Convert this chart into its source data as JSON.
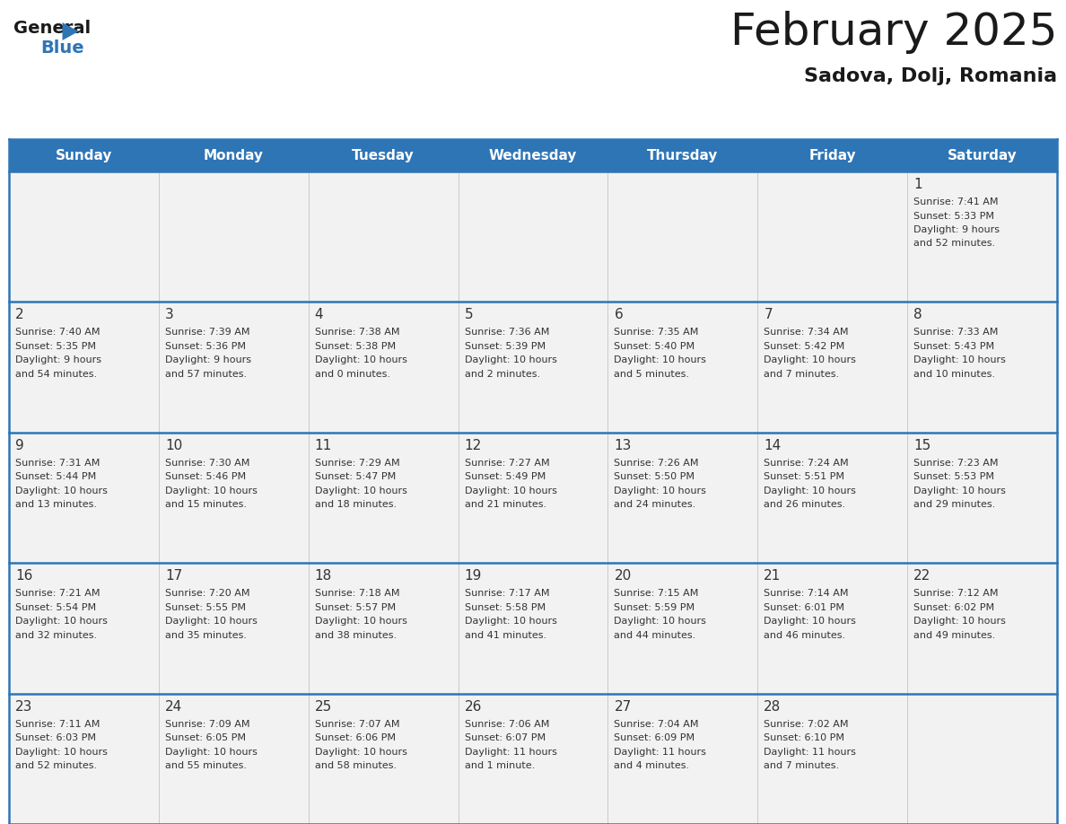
{
  "title": "February 2025",
  "subtitle": "Sadova, Dolj, Romania",
  "header_bg": "#2E75B6",
  "header_text": "#FFFFFF",
  "cell_bg": "#F2F2F2",
  "cell_bg_white": "#FFFFFF",
  "day_names": [
    "Sunday",
    "Monday",
    "Tuesday",
    "Wednesday",
    "Thursday",
    "Friday",
    "Saturday"
  ],
  "weeks": [
    [
      {
        "day": null,
        "sunrise": null,
        "sunset": null,
        "daylight": null
      },
      {
        "day": null,
        "sunrise": null,
        "sunset": null,
        "daylight": null
      },
      {
        "day": null,
        "sunrise": null,
        "sunset": null,
        "daylight": null
      },
      {
        "day": null,
        "sunrise": null,
        "sunset": null,
        "daylight": null
      },
      {
        "day": null,
        "sunrise": null,
        "sunset": null,
        "daylight": null
      },
      {
        "day": null,
        "sunrise": null,
        "sunset": null,
        "daylight": null
      },
      {
        "day": 1,
        "sunrise": "7:41 AM",
        "sunset": "5:33 PM",
        "daylight": "9 hours\nand 52 minutes."
      }
    ],
    [
      {
        "day": 2,
        "sunrise": "7:40 AM",
        "sunset": "5:35 PM",
        "daylight": "9 hours\nand 54 minutes."
      },
      {
        "day": 3,
        "sunrise": "7:39 AM",
        "sunset": "5:36 PM",
        "daylight": "9 hours\nand 57 minutes."
      },
      {
        "day": 4,
        "sunrise": "7:38 AM",
        "sunset": "5:38 PM",
        "daylight": "10 hours\nand 0 minutes."
      },
      {
        "day": 5,
        "sunrise": "7:36 AM",
        "sunset": "5:39 PM",
        "daylight": "10 hours\nand 2 minutes."
      },
      {
        "day": 6,
        "sunrise": "7:35 AM",
        "sunset": "5:40 PM",
        "daylight": "10 hours\nand 5 minutes."
      },
      {
        "day": 7,
        "sunrise": "7:34 AM",
        "sunset": "5:42 PM",
        "daylight": "10 hours\nand 7 minutes."
      },
      {
        "day": 8,
        "sunrise": "7:33 AM",
        "sunset": "5:43 PM",
        "daylight": "10 hours\nand 10 minutes."
      }
    ],
    [
      {
        "day": 9,
        "sunrise": "7:31 AM",
        "sunset": "5:44 PM",
        "daylight": "10 hours\nand 13 minutes."
      },
      {
        "day": 10,
        "sunrise": "7:30 AM",
        "sunset": "5:46 PM",
        "daylight": "10 hours\nand 15 minutes."
      },
      {
        "day": 11,
        "sunrise": "7:29 AM",
        "sunset": "5:47 PM",
        "daylight": "10 hours\nand 18 minutes."
      },
      {
        "day": 12,
        "sunrise": "7:27 AM",
        "sunset": "5:49 PM",
        "daylight": "10 hours\nand 21 minutes."
      },
      {
        "day": 13,
        "sunrise": "7:26 AM",
        "sunset": "5:50 PM",
        "daylight": "10 hours\nand 24 minutes."
      },
      {
        "day": 14,
        "sunrise": "7:24 AM",
        "sunset": "5:51 PM",
        "daylight": "10 hours\nand 26 minutes."
      },
      {
        "day": 15,
        "sunrise": "7:23 AM",
        "sunset": "5:53 PM",
        "daylight": "10 hours\nand 29 minutes."
      }
    ],
    [
      {
        "day": 16,
        "sunrise": "7:21 AM",
        "sunset": "5:54 PM",
        "daylight": "10 hours\nand 32 minutes."
      },
      {
        "day": 17,
        "sunrise": "7:20 AM",
        "sunset": "5:55 PM",
        "daylight": "10 hours\nand 35 minutes."
      },
      {
        "day": 18,
        "sunrise": "7:18 AM",
        "sunset": "5:57 PM",
        "daylight": "10 hours\nand 38 minutes."
      },
      {
        "day": 19,
        "sunrise": "7:17 AM",
        "sunset": "5:58 PM",
        "daylight": "10 hours\nand 41 minutes."
      },
      {
        "day": 20,
        "sunrise": "7:15 AM",
        "sunset": "5:59 PM",
        "daylight": "10 hours\nand 44 minutes."
      },
      {
        "day": 21,
        "sunrise": "7:14 AM",
        "sunset": "6:01 PM",
        "daylight": "10 hours\nand 46 minutes."
      },
      {
        "day": 22,
        "sunrise": "7:12 AM",
        "sunset": "6:02 PM",
        "daylight": "10 hours\nand 49 minutes."
      }
    ],
    [
      {
        "day": 23,
        "sunrise": "7:11 AM",
        "sunset": "6:03 PM",
        "daylight": "10 hours\nand 52 minutes."
      },
      {
        "day": 24,
        "sunrise": "7:09 AM",
        "sunset": "6:05 PM",
        "daylight": "10 hours\nand 55 minutes."
      },
      {
        "day": 25,
        "sunrise": "7:07 AM",
        "sunset": "6:06 PM",
        "daylight": "10 hours\nand 58 minutes."
      },
      {
        "day": 26,
        "sunrise": "7:06 AM",
        "sunset": "6:07 PM",
        "daylight": "11 hours\nand 1 minute."
      },
      {
        "day": 27,
        "sunrise": "7:04 AM",
        "sunset": "6:09 PM",
        "daylight": "11 hours\nand 4 minutes."
      },
      {
        "day": 28,
        "sunrise": "7:02 AM",
        "sunset": "6:10 PM",
        "daylight": "11 hours\nand 7 minutes."
      },
      {
        "day": null,
        "sunrise": null,
        "sunset": null,
        "daylight": null
      }
    ]
  ],
  "separator_color": "#2E75B6",
  "text_color": "#333333",
  "title_fontsize": 36,
  "subtitle_fontsize": 16,
  "header_fontsize": 11,
  "day_num_fontsize": 11,
  "cell_text_fontsize": 8
}
